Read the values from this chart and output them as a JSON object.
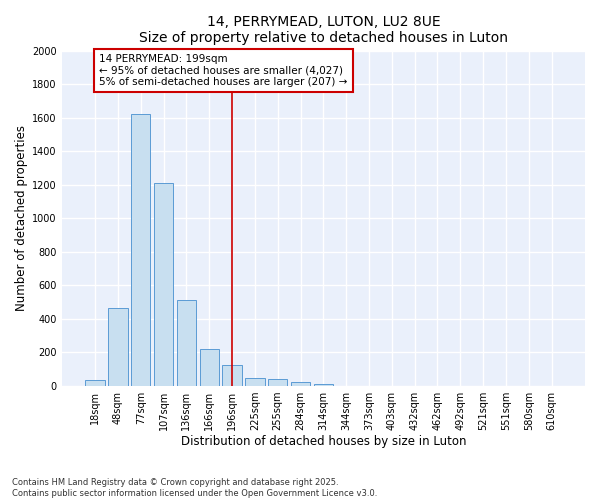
{
  "title1": "14, PERRYMEAD, LUTON, LU2 8UE",
  "title2": "Size of property relative to detached houses in Luton",
  "xlabel": "Distribution of detached houses by size in Luton",
  "ylabel": "Number of detached properties",
  "categories": [
    "18sqm",
    "48sqm",
    "77sqm",
    "107sqm",
    "136sqm",
    "166sqm",
    "196sqm",
    "225sqm",
    "255sqm",
    "284sqm",
    "314sqm",
    "344sqm",
    "373sqm",
    "403sqm",
    "432sqm",
    "462sqm",
    "492sqm",
    "521sqm",
    "551sqm",
    "580sqm",
    "610sqm"
  ],
  "values": [
    35,
    465,
    1620,
    1210,
    515,
    220,
    125,
    50,
    40,
    25,
    10,
    0,
    0,
    0,
    0,
    0,
    0,
    0,
    0,
    0,
    0
  ],
  "bar_color": "#c8dff0",
  "bar_edge_color": "#5b9bd5",
  "vline_x": 6,
  "vline_color": "#cc0000",
  "annotation_text": "14 PERRYMEAD: 199sqm\n← 95% of detached houses are smaller (4,027)\n5% of semi-detached houses are larger (207) →",
  "annotation_box_color": "#cc0000",
  "ylim": [
    0,
    2000
  ],
  "yticks": [
    0,
    200,
    400,
    600,
    800,
    1000,
    1200,
    1400,
    1600,
    1800,
    2000
  ],
  "bg_color": "#eaf0fb",
  "grid_color": "#ffffff",
  "footer": "Contains HM Land Registry data © Crown copyright and database right 2025.\nContains public sector information licensed under the Open Government Licence v3.0.",
  "title_fontsize": 10,
  "axis_label_fontsize": 8.5,
  "tick_fontsize": 7,
  "annotation_fontsize": 7.5,
  "footer_fontsize": 6
}
